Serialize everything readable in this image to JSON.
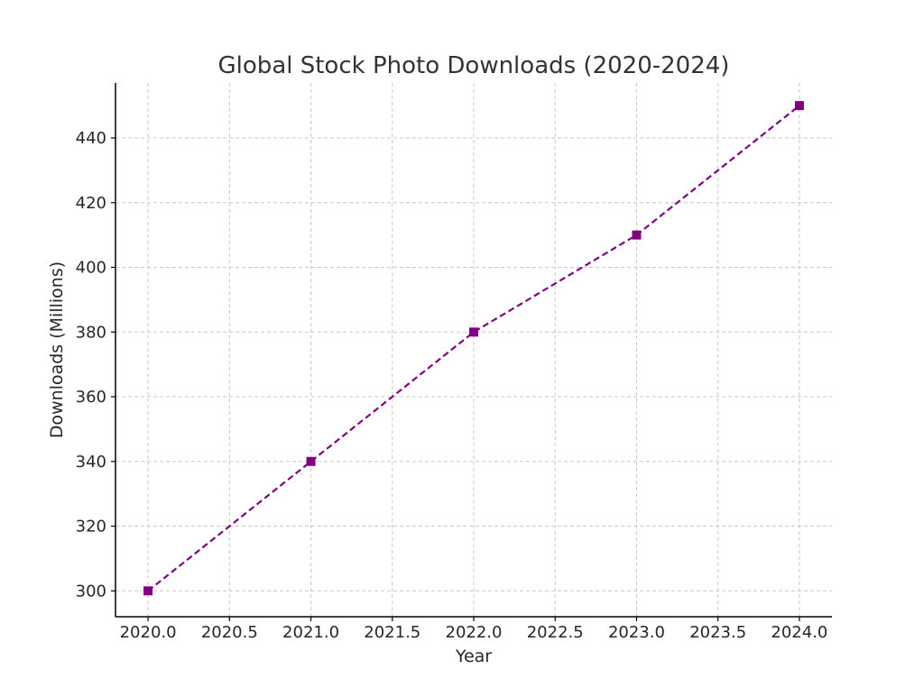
{
  "chart_data": {
    "type": "line",
    "title": "Global Stock Photo Downloads (2020-2024)",
    "xlabel": "Year",
    "ylabel": "Downloads (Millions)",
    "x": [
      2020,
      2021,
      2022,
      2023,
      2024
    ],
    "series": [
      {
        "values": [
          300,
          340,
          380,
          410,
          450
        ],
        "color": "#800080",
        "line_style": "dashed",
        "marker": "square"
      }
    ],
    "xlim": [
      2019.8,
      2024.2
    ],
    "ylim": [
      292,
      457
    ],
    "x_ticks": [
      2020.0,
      2020.5,
      2021.0,
      2021.5,
      2022.0,
      2022.5,
      2023.0,
      2023.5,
      2024.0
    ],
    "x_tick_labels": [
      "2020.0",
      "2020.5",
      "2021.0",
      "2021.5",
      "2022.0",
      "2022.5",
      "2023.0",
      "2023.5",
      "2024.0"
    ],
    "y_ticks": [
      300,
      320,
      340,
      360,
      380,
      400,
      420,
      440
    ],
    "y_tick_labels": [
      "300",
      "320",
      "340",
      "360",
      "380",
      "400",
      "420",
      "440"
    ],
    "grid": true,
    "grid_style": "dashed",
    "legend": "none"
  }
}
